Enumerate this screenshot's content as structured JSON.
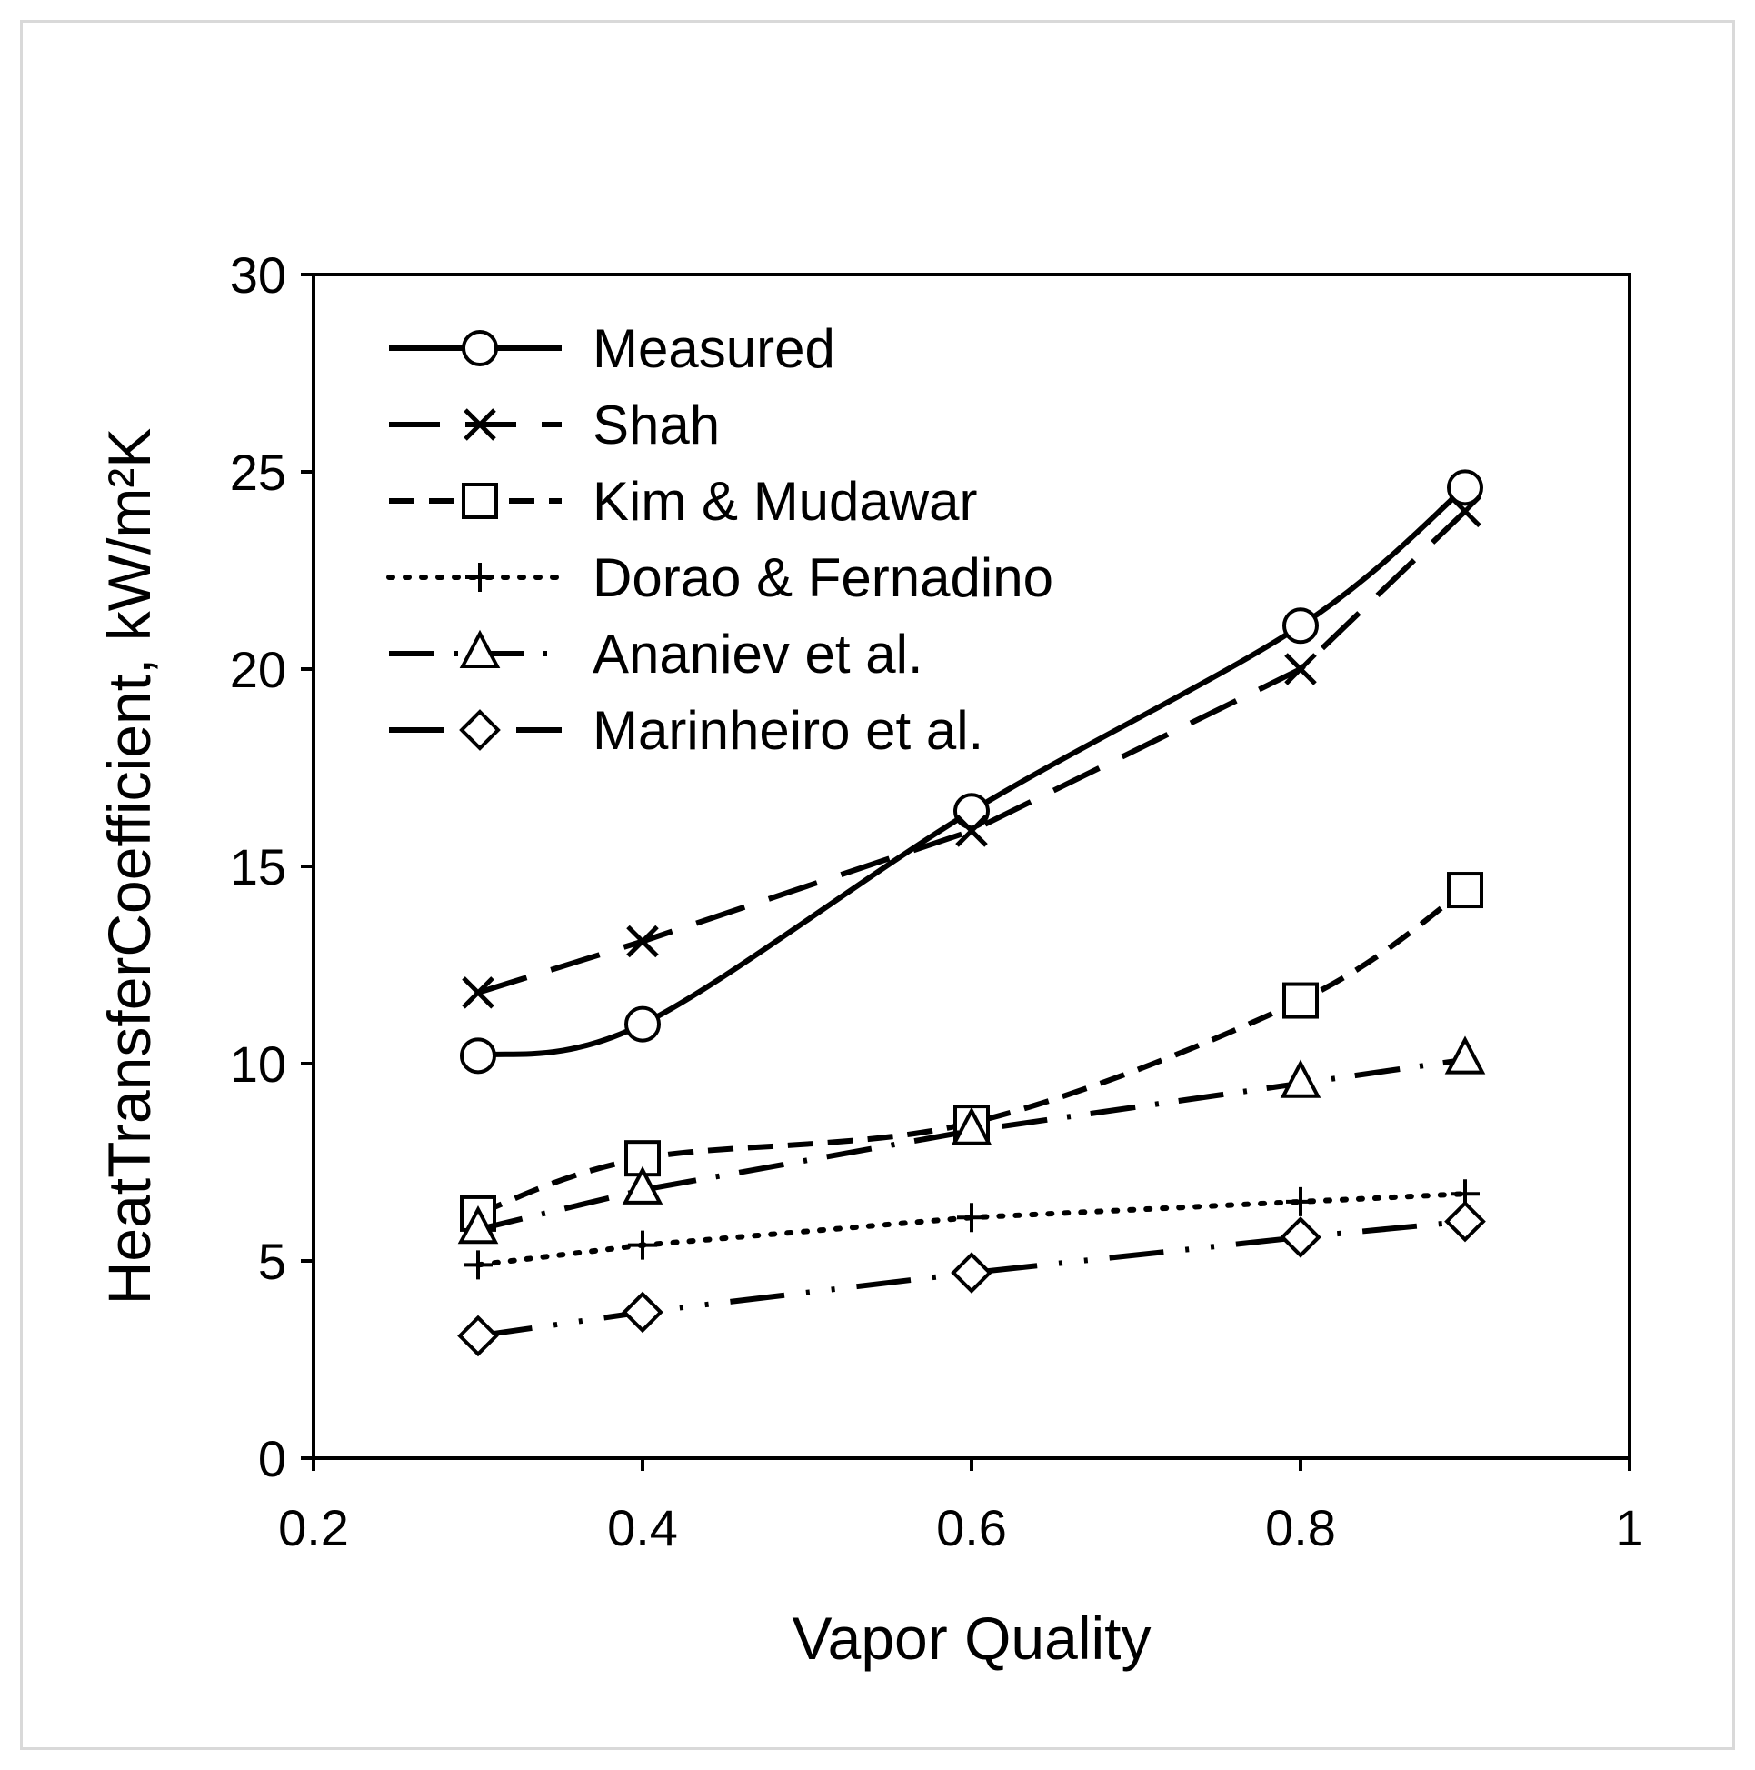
{
  "chart_data": {
    "type": "line",
    "xlabel": "Vapor Quality",
    "ylabel": "HeatTransferCoefficient, kW/m²K",
    "xlim": [
      0.2,
      1
    ],
    "ylim": [
      0,
      30
    ],
    "xticks": [
      0.2,
      0.4,
      0.6,
      0.8,
      1
    ],
    "xtick_labels": [
      "0.2",
      "0.4",
      "0.6",
      "0.8",
      "1"
    ],
    "yticks": [
      0,
      5,
      10,
      15,
      20,
      25,
      30
    ],
    "ytick_labels": [
      "0",
      "5",
      "10",
      "15",
      "20",
      "25",
      "30"
    ],
    "grid": false,
    "legend_position": "top-left",
    "series": [
      {
        "name": "Measured",
        "marker": "circle",
        "line": "solid",
        "smooth": true,
        "x": [
          0.3,
          0.4,
          0.6,
          0.8,
          0.9
        ],
        "y": [
          10.2,
          11.0,
          16.4,
          21.1,
          24.6
        ]
      },
      {
        "name": "Shah",
        "marker": "x",
        "line": "long-dash",
        "x": [
          0.3,
          0.4,
          0.6,
          0.8,
          0.9
        ],
        "y": [
          11.8,
          13.1,
          15.9,
          20.0,
          24.0
        ]
      },
      {
        "name": "Kim & Mudawar",
        "marker": "square",
        "line": "dash",
        "smooth": true,
        "x": [
          0.3,
          0.4,
          0.6,
          0.8,
          0.9
        ],
        "y": [
          6.2,
          7.6,
          8.5,
          11.6,
          14.4
        ]
      },
      {
        "name": "Dorao & Fernadino",
        "marker": "plus",
        "line": "dot",
        "x": [
          0.3,
          0.4,
          0.6,
          0.8,
          0.9
        ],
        "y": [
          4.9,
          5.4,
          6.1,
          6.5,
          6.7
        ]
      },
      {
        "name": "Ananiev et al.",
        "marker": "triangle",
        "line": "dash-dot",
        "x": [
          0.3,
          0.4,
          0.6,
          0.8,
          0.9
        ],
        "y": [
          5.8,
          6.8,
          8.3,
          9.5,
          10.1
        ]
      },
      {
        "name": "Marinheiro et al.",
        "marker": "diamond",
        "line": "long-dash-dot",
        "x": [
          0.3,
          0.4,
          0.6,
          0.8,
          0.9
        ],
        "y": [
          3.1,
          3.7,
          4.7,
          5.6,
          6.0
        ]
      }
    ]
  }
}
